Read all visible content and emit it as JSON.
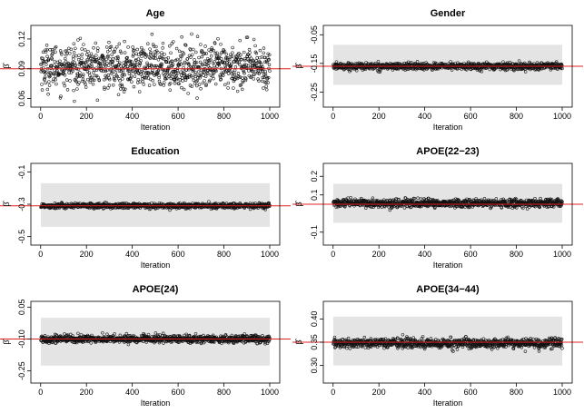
{
  "chart_data": [
    {
      "type": "scatter",
      "title": "Age",
      "xlabel": "Iteration",
      "ylabel": "β̂",
      "xlim": [
        1,
        1000
      ],
      "ylim": [
        0.055,
        0.13
      ],
      "x_ticks": [
        0,
        200,
        400,
        600,
        800,
        1000
      ],
      "y_ticks": [
        0.06,
        0.09,
        0.12
      ],
      "y_tick_labels": [
        "0.06",
        "0.09",
        "0.12"
      ],
      "reference_line": 0.09,
      "band": null,
      "series": {
        "n": 1000,
        "center": 0.092,
        "spread": 0.011
      }
    },
    {
      "type": "scatter",
      "title": "Gender",
      "xlabel": "Iteration",
      "ylabel": "β̂",
      "xlim": [
        1,
        1000
      ],
      "ylim": [
        -0.29,
        -0.03
      ],
      "x_ticks": [
        0,
        200,
        400,
        600,
        800,
        1000
      ],
      "y_ticks": [
        -0.25,
        -0.15,
        -0.05
      ],
      "y_tick_labels": [
        "-0.25",
        "-0.15",
        "-0.05"
      ],
      "reference_line": -0.16,
      "band": [
        -0.225,
        -0.085
      ],
      "series": {
        "n": 1000,
        "center": -0.16,
        "spread": 0.006
      }
    },
    {
      "type": "scatter",
      "title": "Education",
      "xlabel": "Iteration",
      "ylabel": "β̂",
      "xlim": [
        1,
        1000
      ],
      "ylim": [
        -0.53,
        -0.07
      ],
      "x_ticks": [
        0,
        200,
        400,
        600,
        800,
        1000
      ],
      "y_ticks": [
        -0.5,
        -0.3,
        -0.1
      ],
      "y_tick_labels": [
        "-0.5",
        "-0.3",
        "-0.1"
      ],
      "reference_line": -0.31,
      "band": [
        -0.44,
        -0.17
      ],
      "series": {
        "n": 1000,
        "center": -0.31,
        "spread": 0.008
      }
    },
    {
      "type": "scatter",
      "title": "APOE(22−23)",
      "xlabel": "Iteration",
      "ylabel": "β̂",
      "xlim": [
        1,
        1000
      ],
      "ylim": [
        -0.15,
        0.25
      ],
      "x_ticks": [
        0,
        200,
        400,
        600,
        800,
        1000
      ],
      "y_ticks": [
        -0.1,
        0.1,
        0.2
      ],
      "y_tick_labels": [
        "-0.1",
        "0.1",
        "0.2"
      ],
      "reference_line": 0.05,
      "band": [
        -0.05,
        0.16
      ],
      "series": {
        "n": 1000,
        "center": 0.055,
        "spread": 0.011
      }
    },
    {
      "type": "scatter",
      "title": "APOE(24)",
      "xlabel": "Iteration",
      "ylabel": "β̂",
      "xlim": [
        1,
        1000
      ],
      "ylim": [
        -0.29,
        0.06
      ],
      "x_ticks": [
        0,
        200,
        400,
        600,
        800,
        1000
      ],
      "y_ticks": [
        -0.25,
        -0.1,
        0.05
      ],
      "y_tick_labels": [
        "-0.25",
        "-0.10",
        "0.05"
      ],
      "reference_line": -0.1,
      "band": [
        -0.225,
        0.0
      ],
      "series": {
        "n": 1000,
        "center": -0.1,
        "spread": 0.009
      }
    },
    {
      "type": "scatter",
      "title": "APOE(34−44)",
      "xlabel": "Iteration",
      "ylabel": "β̂",
      "xlim": [
        1,
        1000
      ],
      "ylim": [
        0.27,
        0.43
      ],
      "x_ticks": [
        0,
        200,
        400,
        600,
        800,
        1000
      ],
      "y_ticks": [
        0.3,
        0.35,
        0.4
      ],
      "y_tick_labels": [
        "0.30",
        "0.35",
        "0.40"
      ],
      "reference_line": 0.35,
      "band": [
        0.3,
        0.405
      ],
      "series": {
        "n": 1000,
        "center": 0.348,
        "spread": 0.005
      }
    }
  ]
}
